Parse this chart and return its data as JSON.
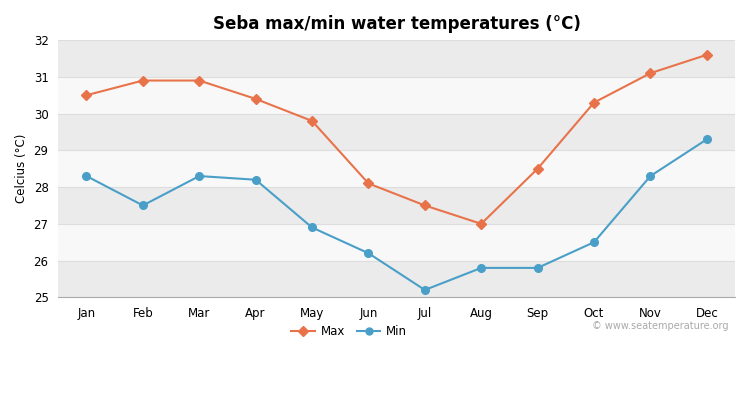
{
  "title": "Seba max/min water temperatures (°C)",
  "ylabel": "Celcius (°C)",
  "months": [
    "Jan",
    "Feb",
    "Mar",
    "Apr",
    "May",
    "Jun",
    "Jul",
    "Aug",
    "Sep",
    "Oct",
    "Nov",
    "Dec"
  ],
  "max_temps": [
    30.5,
    30.9,
    30.9,
    30.4,
    29.8,
    28.1,
    27.5,
    27.0,
    28.5,
    30.3,
    31.1,
    31.6
  ],
  "min_temps": [
    28.3,
    27.5,
    28.3,
    28.2,
    26.9,
    26.2,
    25.2,
    25.8,
    25.8,
    26.5,
    28.3,
    29.3
  ],
  "max_color": "#E8734A",
  "min_color": "#4A9FC8",
  "fig_bg_color": "#ffffff",
  "plot_bg_color": "#ffffff",
  "band_color_odd": "#ebebeb",
  "band_color_even": "#f8f8f8",
  "grid_color": "#dddddd",
  "ylim": [
    25,
    32
  ],
  "yticks": [
    25,
    26,
    27,
    28,
    29,
    30,
    31,
    32
  ],
  "watermark": "© www.seatemperature.org",
  "legend_max": "Max",
  "legend_min": "Min",
  "title_fontsize": 12,
  "axis_fontsize": 8.5,
  "watermark_fontsize": 7
}
